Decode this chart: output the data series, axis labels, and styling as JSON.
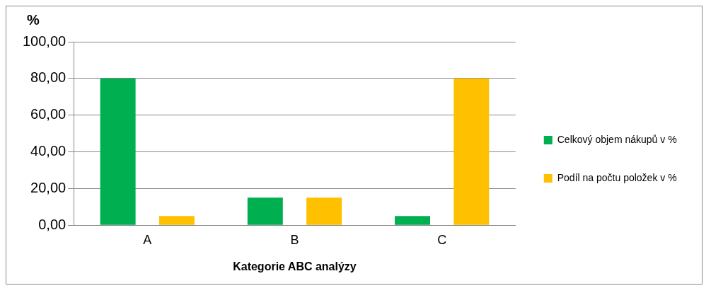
{
  "chart_data": {
    "type": "bar",
    "ylabel": "%",
    "xlabel": "Kategorie ABC analýzy",
    "categories": [
      "A",
      "B",
      "C"
    ],
    "series": [
      {
        "name": "Celkový objem nákupů v %",
        "color": "#00b050",
        "values": [
          80,
          15,
          5
        ]
      },
      {
        "name": "Podíl na počtu položek v %",
        "color": "#ffc000",
        "values": [
          5,
          15,
          80
        ]
      }
    ],
    "ylim": [
      0,
      100
    ],
    "yticks": [
      {
        "value": 0,
        "label": "0,00"
      },
      {
        "value": 20,
        "label": "20,00"
      },
      {
        "value": 40,
        "label": "40,00"
      },
      {
        "value": 60,
        "label": "60,00"
      },
      {
        "value": 80,
        "label": "80,00"
      },
      {
        "value": 100,
        "label": "100,00"
      }
    ],
    "grid": "y",
    "legend": "right"
  }
}
